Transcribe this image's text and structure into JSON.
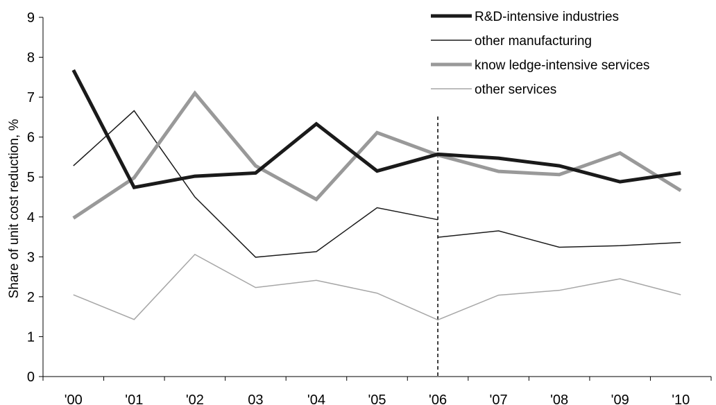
{
  "chart_data": {
    "type": "line",
    "title": "",
    "xlabel": "",
    "ylabel": "Share of unit cost reduction, %",
    "categories": [
      "'00",
      "'01",
      "'02",
      "03",
      "'04",
      "'05",
      "'06",
      "'07",
      "'08",
      "'09",
      "'10"
    ],
    "ylim": [
      0,
      9
    ],
    "yticks": [
      "0",
      "1",
      "2",
      "3",
      "4",
      "5",
      "6",
      "7",
      "8",
      "9"
    ],
    "grid": false,
    "legend_position": "top-right",
    "break_marker": "'06",
    "series": [
      {
        "name": "R&D-intensive industries",
        "color": "#1a1a1a",
        "style": "thick",
        "values": [
          7.68,
          4.74,
          5.02,
          5.1,
          6.33,
          5.15,
          5.57,
          5.47,
          5.28,
          4.88,
          5.1
        ]
      },
      {
        "name": "other manufacturing",
        "color": "#1a1a1a",
        "style": "thin",
        "values": [
          5.28,
          6.66,
          4.5,
          2.99,
          3.13,
          4.23,
          3.93,
          3.65,
          3.24,
          3.28,
          3.36
        ],
        "break_value_after": 3.49
      },
      {
        "name": "know ledge-intensive services",
        "color": "#999999",
        "style": "thick",
        "values": [
          3.97,
          4.98,
          7.1,
          5.28,
          4.44,
          6.11,
          5.55,
          5.14,
          5.06,
          5.6,
          4.66
        ]
      },
      {
        "name": "other services",
        "color": "#a6a6a6",
        "style": "thin",
        "values": [
          2.05,
          1.43,
          3.06,
          2.23,
          2.41,
          2.09,
          1.42,
          2.04,
          2.16,
          2.45,
          2.05
        ]
      }
    ]
  }
}
